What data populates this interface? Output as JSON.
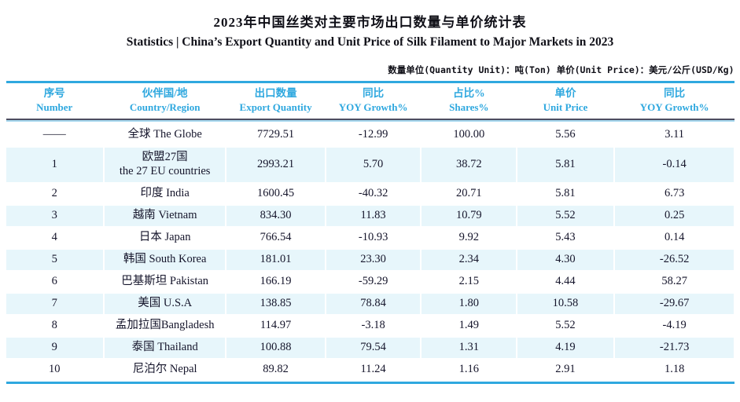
{
  "title": "2023年中国丝类对主要市场出口数量与单价统计表",
  "subtitle": "Statistics | China’s Export Quantity and Unit Price of Silk Filament to Major Markets in 2023",
  "unit_note": "数量单位(Quantity Unit)：吨(Ton) 单价(Unit Price)：美元/公斤(USD/Kg)",
  "colors": {
    "accent": "#2FA8DF",
    "row_alt": "#E7F6FB",
    "header_text": "#2FA8DF",
    "body_text": "#15152B"
  },
  "table": {
    "columns": [
      {
        "zh": "序号",
        "en": "Number"
      },
      {
        "zh": "伙伴国/地",
        "en": "Country/Region"
      },
      {
        "zh": "出口数量",
        "en": "Export Quantity"
      },
      {
        "zh": "同比",
        "en": "YOY Growth%"
      },
      {
        "zh": "占比%",
        "en": "Shares%"
      },
      {
        "zh": "单价",
        "en": "Unit Price"
      },
      {
        "zh": "同比",
        "en": "YOY Growth%"
      }
    ],
    "rows": [
      {
        "number": "——",
        "country": "全球 The Globe",
        "country2": "",
        "qty": "7729.51",
        "yoy_qty": "-12.99",
        "share": "100.00",
        "price": "5.56",
        "yoy_price": "3.11"
      },
      {
        "number": "1",
        "country": "欧盟27国",
        "country2": "the 27 EU countries",
        "qty": "2993.21",
        "yoy_qty": "5.70",
        "share": "38.72",
        "price": "5.81",
        "yoy_price": "-0.14"
      },
      {
        "number": "2",
        "country": "印度 India",
        "country2": "",
        "qty": "1600.45",
        "yoy_qty": "-40.32",
        "share": "20.71",
        "price": "5.81",
        "yoy_price": "6.73"
      },
      {
        "number": "3",
        "country": "越南 Vietnam",
        "country2": "",
        "qty": "834.30",
        "yoy_qty": "11.83",
        "share": "10.79",
        "price": "5.52",
        "yoy_price": "0.25"
      },
      {
        "number": "4",
        "country": "日本 Japan",
        "country2": "",
        "qty": "766.54",
        "yoy_qty": "-10.93",
        "share": "9.92",
        "price": "5.43",
        "yoy_price": "0.14"
      },
      {
        "number": "5",
        "country": "韩国 South Korea",
        "country2": "",
        "qty": "181.01",
        "yoy_qty": "23.30",
        "share": "2.34",
        "price": "4.30",
        "yoy_price": "-26.52"
      },
      {
        "number": "6",
        "country": "巴基斯坦 Pakistan",
        "country2": "",
        "qty": "166.19",
        "yoy_qty": "-59.29",
        "share": "2.15",
        "price": "4.44",
        "yoy_price": "58.27"
      },
      {
        "number": "7",
        "country": "美国 U.S.A",
        "country2": "",
        "qty": "138.85",
        "yoy_qty": "78.84",
        "share": "1.80",
        "price": "10.58",
        "yoy_price": "-29.67"
      },
      {
        "number": "8",
        "country": "孟加拉国Bangladesh",
        "country2": "",
        "qty": "114.97",
        "yoy_qty": "-3.18",
        "share": "1.49",
        "price": "5.52",
        "yoy_price": "-4.19"
      },
      {
        "number": "9",
        "country": "泰国 Thailand",
        "country2": "",
        "qty": "100.88",
        "yoy_qty": "79.54",
        "share": "1.31",
        "price": "4.19",
        "yoy_price": "-21.73"
      },
      {
        "number": "10",
        "country": "尼泊尔 Nepal",
        "country2": "",
        "qty": "89.82",
        "yoy_qty": "11.24",
        "share": "1.16",
        "price": "2.91",
        "yoy_price": "1.18"
      }
    ]
  }
}
